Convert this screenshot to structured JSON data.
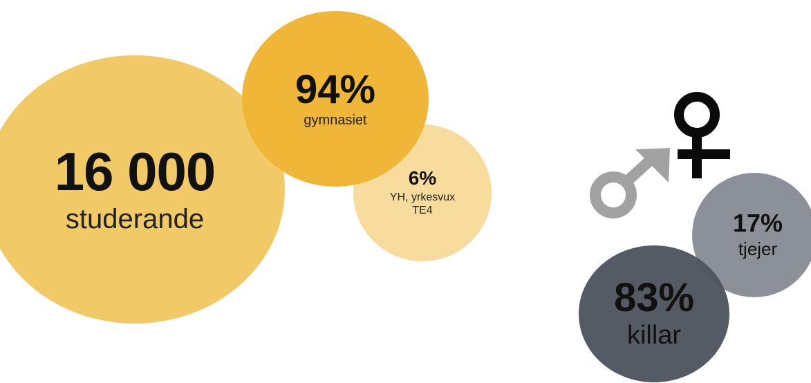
{
  "colors": {
    "students_bubble": "#f2c967",
    "gymnasiet_bubble": "#f0b637",
    "yh_bubble": "#f7dc9d",
    "tjejer_bubble": "#8c9199",
    "killar_bubble": "#4e545e",
    "male_symbol": "#a2a2a2",
    "female_symbol": "#0a0a0a"
  },
  "students": {
    "value": "16 000",
    "label": "studerande"
  },
  "gymnasiet": {
    "value": "94%",
    "label": "gymnasiet"
  },
  "yh": {
    "value": "6%",
    "label_line1": "YH, yrkesvux",
    "label_line2": "TE4"
  },
  "tjejer": {
    "value": "17%",
    "label": "tjejer"
  },
  "killar": {
    "value": "83%",
    "label": "killar"
  },
  "icons": {
    "male": "male-symbol-icon",
    "female": "female-symbol-icon"
  }
}
